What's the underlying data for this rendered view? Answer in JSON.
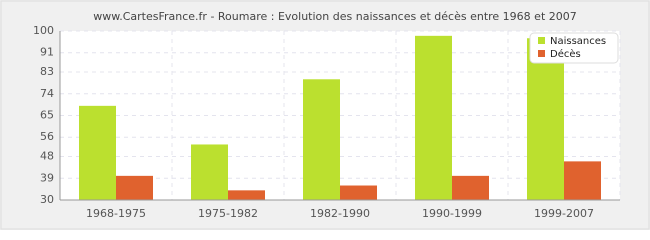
{
  "chart_data": {
    "type": "bar",
    "title": "www.CartesFrance.fr - Roumare : Evolution des naissances et décès entre 1968 et 2007",
    "categories": [
      "1968-1975",
      "1975-1982",
      "1982-1990",
      "1990-1999",
      "1999-2007"
    ],
    "series": [
      {
        "name": "Naissances",
        "color": "#bbe02f",
        "values": [
          69,
          53,
          80,
          98,
          97
        ]
      },
      {
        "name": "Décès",
        "color": "#e0622e",
        "values": [
          40,
          34,
          36,
          40,
          46
        ]
      }
    ],
    "ylim": [
      30,
      100
    ],
    "yticks": [
      30,
      39,
      48,
      56,
      65,
      74,
      83,
      91,
      100
    ],
    "grid": true,
    "legend": "top-right"
  }
}
